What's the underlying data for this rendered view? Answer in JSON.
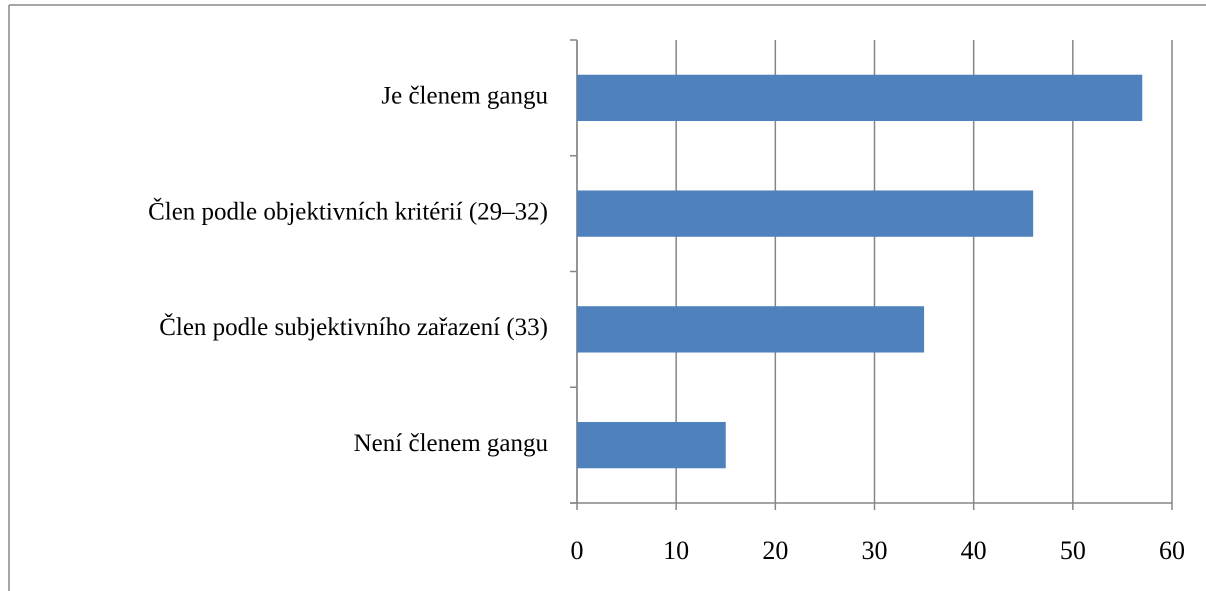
{
  "chart_data": {
    "type": "bar",
    "orientation": "horizontal",
    "categories": [
      "Je členem gangu",
      "Člen podle objektivních kritérií (29–32)",
      "Člen podle subjektivního zařazení (33)",
      "Není členem gangu"
    ],
    "values": [
      57,
      46,
      35,
      15
    ],
    "color": "#4f81bd",
    "xlim": [
      0,
      60
    ],
    "xticks": [
      0,
      10,
      20,
      30,
      40,
      50,
      60
    ],
    "grid": true
  }
}
